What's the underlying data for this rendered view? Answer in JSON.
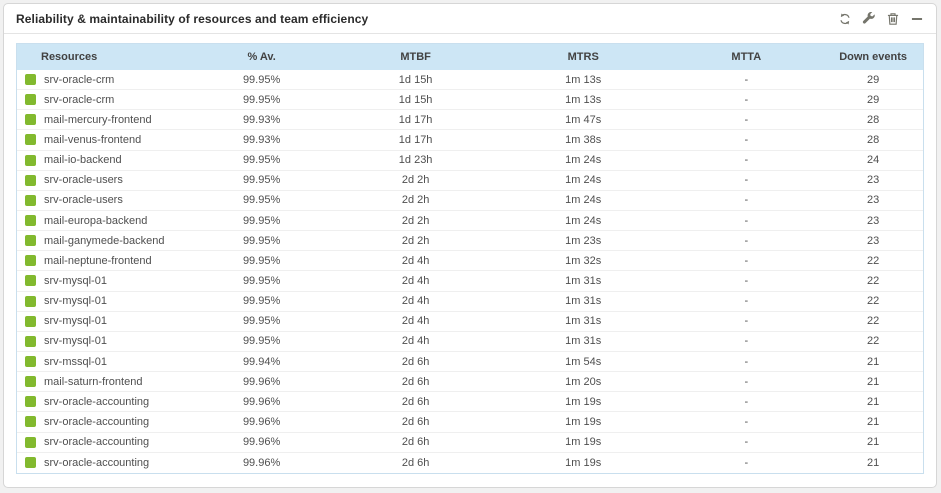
{
  "widget": {
    "title": "Reliability & maintainability of resources and team efficiency",
    "actions": [
      {
        "icon": "refresh-icon",
        "label": "refresh"
      },
      {
        "icon": "wrench-icon",
        "label": "configure"
      },
      {
        "icon": "trash-icon",
        "label": "delete"
      },
      {
        "icon": "minus-icon",
        "label": "minimize"
      }
    ]
  },
  "colors": {
    "header_bg": "#cde6f5",
    "table_border": "#c9dfee",
    "status_ok": "#82b92e",
    "icon_gray": "#75756c"
  },
  "table": {
    "columns": [
      "Resources",
      "% Av.",
      "MTBF",
      "MTRS",
      "MTTA",
      "Down events"
    ],
    "rows": [
      {
        "status": "ok",
        "resource": "srv-oracle-crm",
        "availability": "99.95%",
        "mtbf": "1d 15h",
        "mtrs": "1m 13s",
        "mtta": "-",
        "down_events": "29"
      },
      {
        "status": "ok",
        "resource": "srv-oracle-crm",
        "availability": "99.95%",
        "mtbf": "1d 15h",
        "mtrs": "1m 13s",
        "mtta": "-",
        "down_events": "29"
      },
      {
        "status": "ok",
        "resource": "mail-mercury-frontend",
        "availability": "99.93%",
        "mtbf": "1d 17h",
        "mtrs": "1m 47s",
        "mtta": "-",
        "down_events": "28"
      },
      {
        "status": "ok",
        "resource": "mail-venus-frontend",
        "availability": "99.93%",
        "mtbf": "1d 17h",
        "mtrs": "1m 38s",
        "mtta": "-",
        "down_events": "28"
      },
      {
        "status": "ok",
        "resource": "mail-io-backend",
        "availability": "99.95%",
        "mtbf": "1d 23h",
        "mtrs": "1m 24s",
        "mtta": "-",
        "down_events": "24"
      },
      {
        "status": "ok",
        "resource": "srv-oracle-users",
        "availability": "99.95%",
        "mtbf": "2d 2h",
        "mtrs": "1m 24s",
        "mtta": "-",
        "down_events": "23"
      },
      {
        "status": "ok",
        "resource": "srv-oracle-users",
        "availability": "99.95%",
        "mtbf": "2d 2h",
        "mtrs": "1m 24s",
        "mtta": "-",
        "down_events": "23"
      },
      {
        "status": "ok",
        "resource": "mail-europa-backend",
        "availability": "99.95%",
        "mtbf": "2d 2h",
        "mtrs": "1m 24s",
        "mtta": "-",
        "down_events": "23"
      },
      {
        "status": "ok",
        "resource": "mail-ganymede-backend",
        "availability": "99.95%",
        "mtbf": "2d 2h",
        "mtrs": "1m 23s",
        "mtta": "-",
        "down_events": "23"
      },
      {
        "status": "ok",
        "resource": "mail-neptune-frontend",
        "availability": "99.95%",
        "mtbf": "2d 4h",
        "mtrs": "1m 32s",
        "mtta": "-",
        "down_events": "22"
      },
      {
        "status": "ok",
        "resource": "srv-mysql-01",
        "availability": "99.95%",
        "mtbf": "2d 4h",
        "mtrs": "1m 31s",
        "mtta": "-",
        "down_events": "22"
      },
      {
        "status": "ok",
        "resource": "srv-mysql-01",
        "availability": "99.95%",
        "mtbf": "2d 4h",
        "mtrs": "1m 31s",
        "mtta": "-",
        "down_events": "22"
      },
      {
        "status": "ok",
        "resource": "srv-mysql-01",
        "availability": "99.95%",
        "mtbf": "2d 4h",
        "mtrs": "1m 31s",
        "mtta": "-",
        "down_events": "22"
      },
      {
        "status": "ok",
        "resource": "srv-mysql-01",
        "availability": "99.95%",
        "mtbf": "2d 4h",
        "mtrs": "1m 31s",
        "mtta": "-",
        "down_events": "22"
      },
      {
        "status": "ok",
        "resource": "srv-mssql-01",
        "availability": "99.94%",
        "mtbf": "2d 6h",
        "mtrs": "1m 54s",
        "mtta": "-",
        "down_events": "21"
      },
      {
        "status": "ok",
        "resource": "mail-saturn-frontend",
        "availability": "99.96%",
        "mtbf": "2d 6h",
        "mtrs": "1m 20s",
        "mtta": "-",
        "down_events": "21"
      },
      {
        "status": "ok",
        "resource": "srv-oracle-accounting",
        "availability": "99.96%",
        "mtbf": "2d 6h",
        "mtrs": "1m 19s",
        "mtta": "-",
        "down_events": "21"
      },
      {
        "status": "ok",
        "resource": "srv-oracle-accounting",
        "availability": "99.96%",
        "mtbf": "2d 6h",
        "mtrs": "1m 19s",
        "mtta": "-",
        "down_events": "21"
      },
      {
        "status": "ok",
        "resource": "srv-oracle-accounting",
        "availability": "99.96%",
        "mtbf": "2d 6h",
        "mtrs": "1m 19s",
        "mtta": "-",
        "down_events": "21"
      },
      {
        "status": "ok",
        "resource": "srv-oracle-accounting",
        "availability": "99.96%",
        "mtbf": "2d 6h",
        "mtrs": "1m 19s",
        "mtta": "-",
        "down_events": "21"
      }
    ]
  }
}
